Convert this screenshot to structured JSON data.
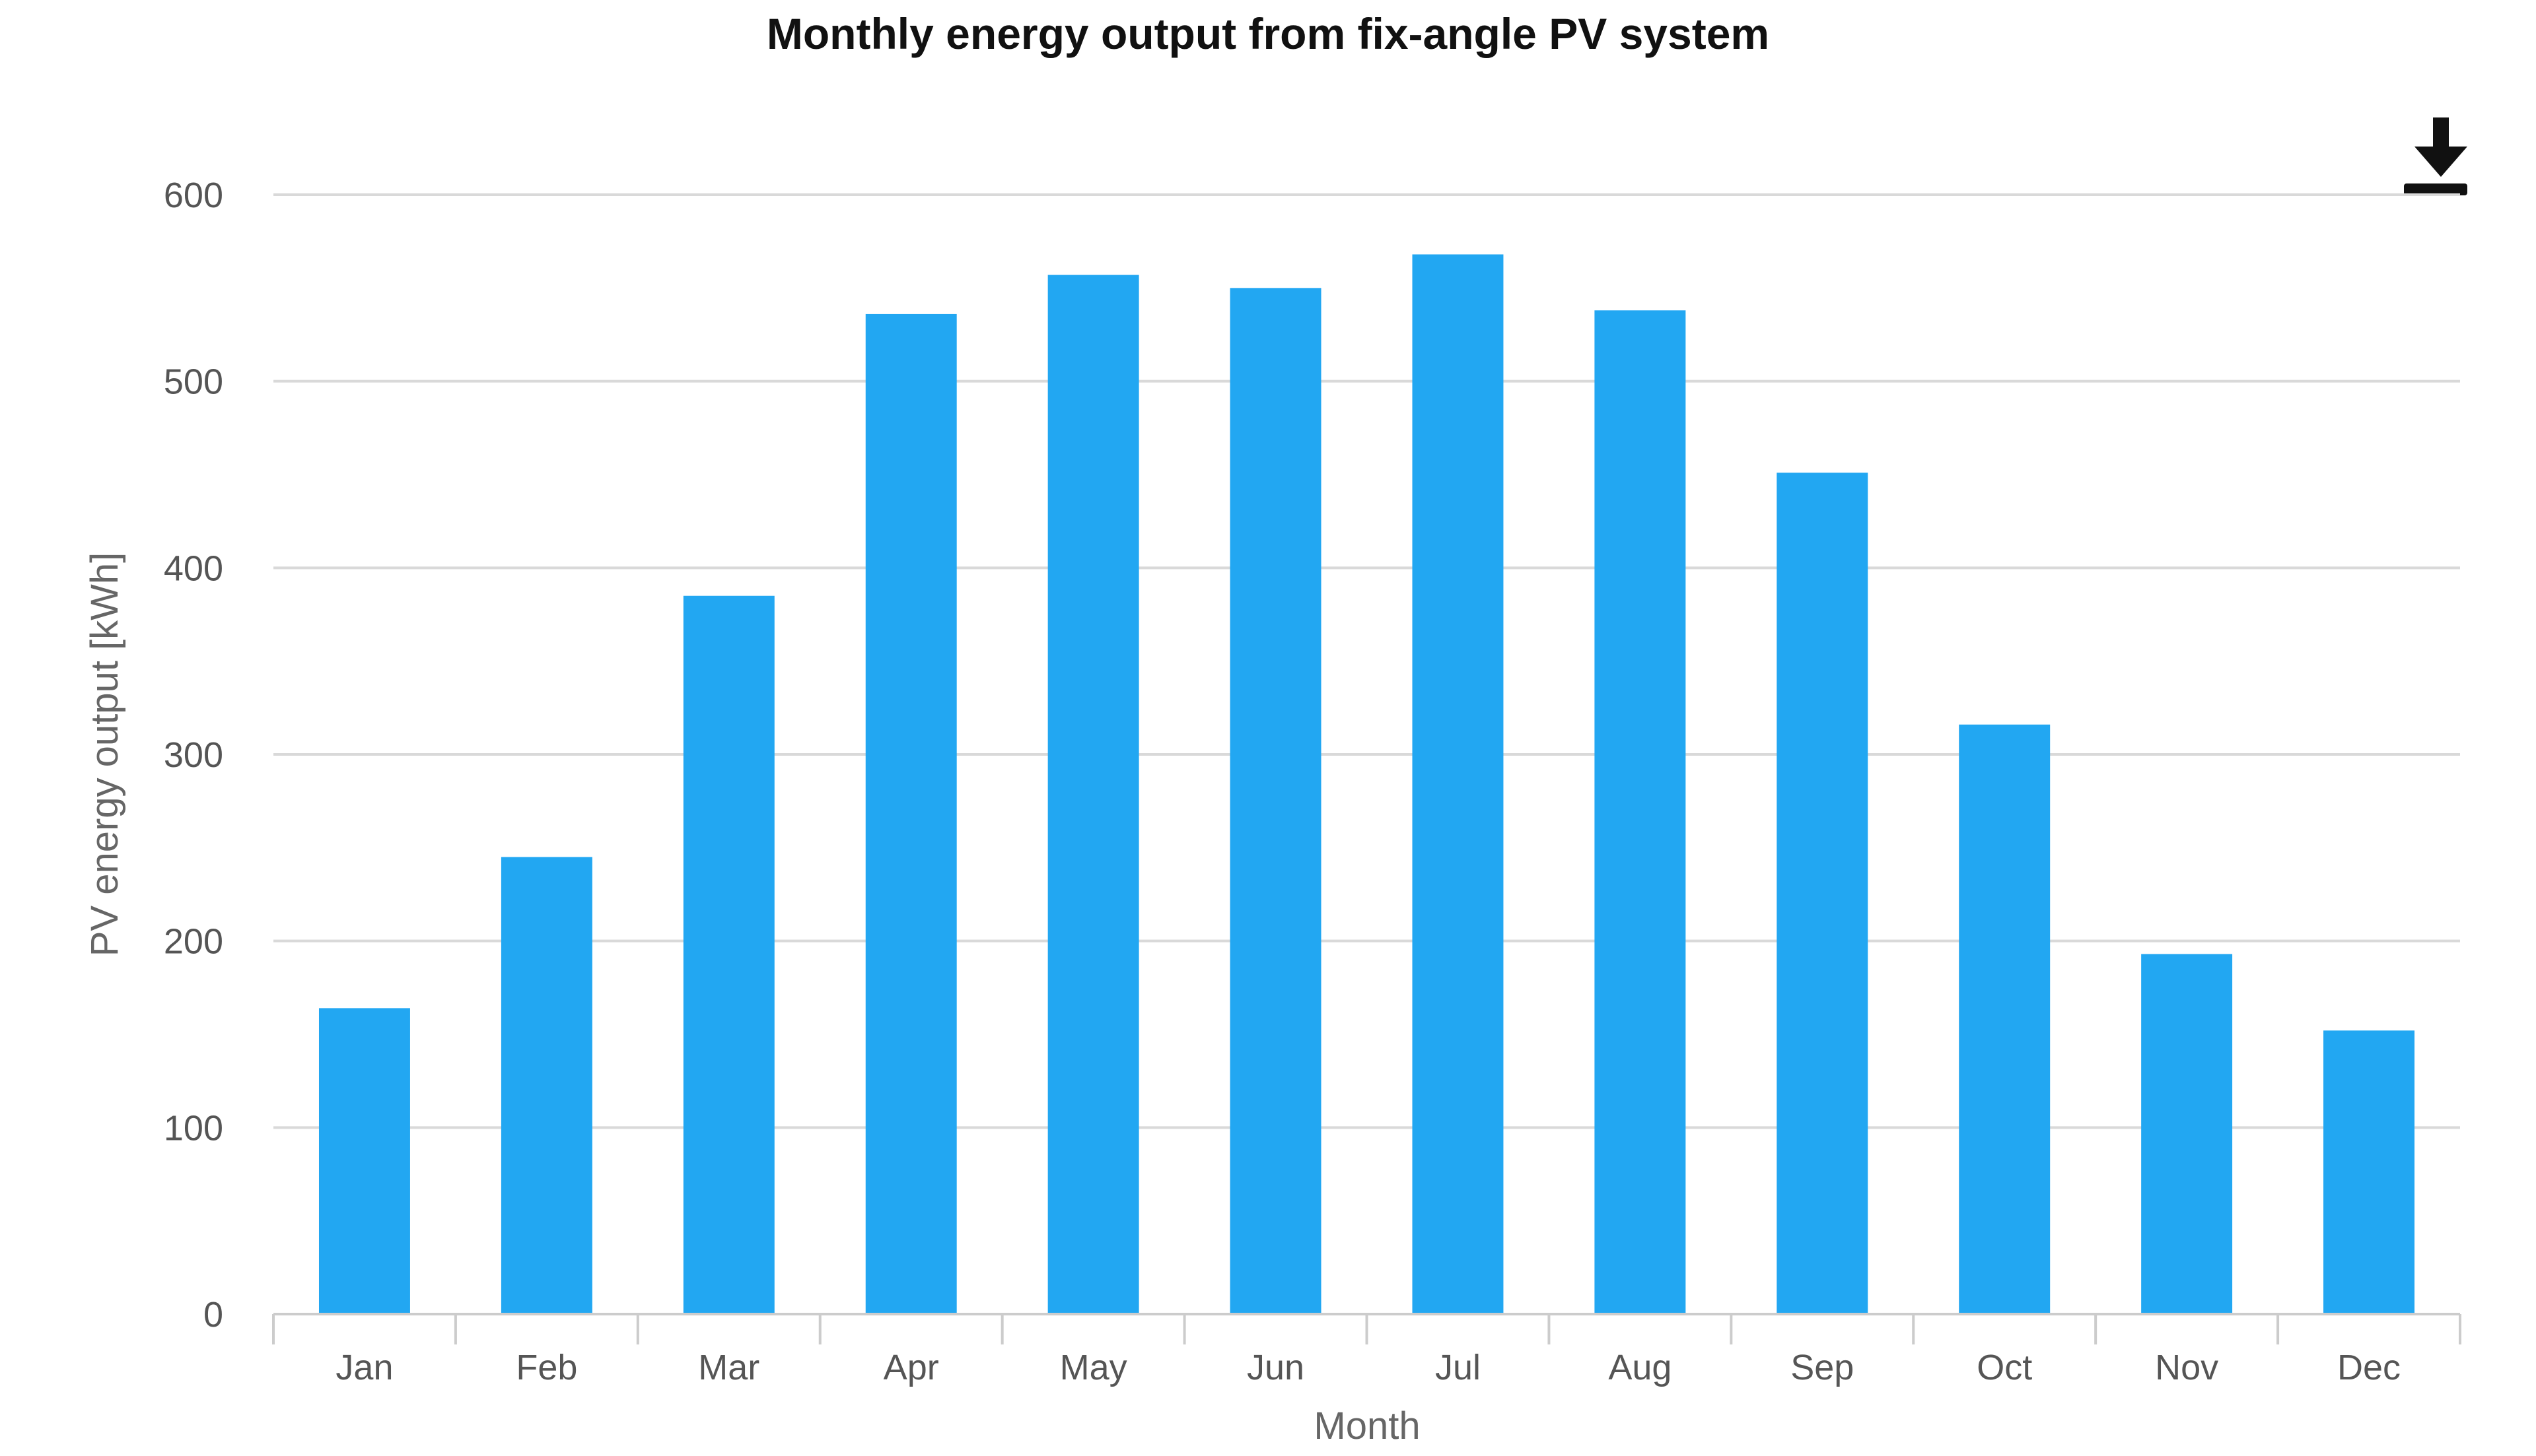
{
  "chart_data": {
    "type": "bar",
    "title": "Monthly energy output from fix-angle PV system",
    "xlabel": "Month",
    "ylabel": "PV energy output [kWh]",
    "categories": [
      "Jan",
      "Feb",
      "Mar",
      "Apr",
      "May",
      "Jun",
      "Jul",
      "Aug",
      "Sep",
      "Oct",
      "Nov",
      "Dec"
    ],
    "values": [
      164,
      245,
      385,
      536,
      557,
      550,
      568,
      538,
      451,
      316,
      193,
      152
    ],
    "ylim": [
      0,
      600
    ],
    "yticks": [
      0,
      100,
      200,
      300,
      400,
      500,
      600
    ],
    "grid": true,
    "bar_color": "#22a7f2"
  },
  "toolbar": {
    "download_icon": "download-icon"
  }
}
